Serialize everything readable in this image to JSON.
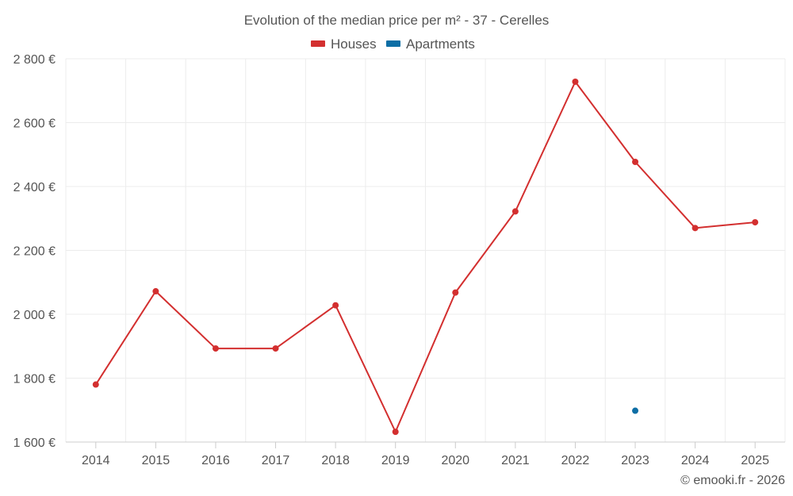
{
  "chart_data": {
    "type": "line",
    "title": "Evolution of the median price per m² - 37 - Cerelles",
    "categories": [
      "2014",
      "2015",
      "2016",
      "2017",
      "2018",
      "2019",
      "2020",
      "2021",
      "2022",
      "2023",
      "2024",
      "2025"
    ],
    "y_tick_labels": [
      "1 600 €",
      "1 800 €",
      "2 000 €",
      "2 200 €",
      "2 400 €",
      "2 600 €",
      "2 800 €"
    ],
    "y_ticks": [
      1600,
      1800,
      2000,
      2200,
      2400,
      2600,
      2800
    ],
    "ylim": [
      1600,
      2800
    ],
    "grid": true,
    "legend_position": "top-center",
    "series": [
      {
        "name": "Houses",
        "color": "#d32f2f",
        "values": [
          1780,
          2072,
          1893,
          1893,
          2028,
          1632,
          2068,
          2322,
          2728,
          2477,
          2270,
          2288
        ]
      },
      {
        "name": "Apartments",
        "color": "#0d6ea5",
        "values": [
          null,
          null,
          null,
          null,
          null,
          null,
          null,
          null,
          null,
          1698,
          null,
          null
        ]
      }
    ],
    "credit": "© emooki.fr - 2026"
  }
}
